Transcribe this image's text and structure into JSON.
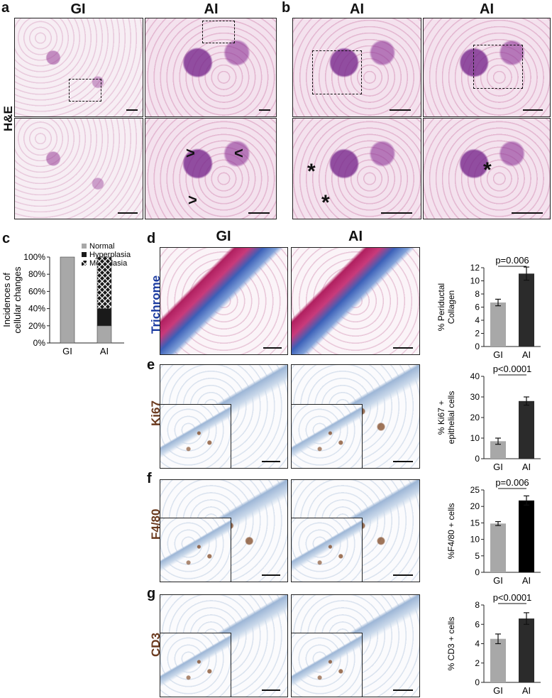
{
  "panels": {
    "a": {
      "label": "a",
      "col1": "GI",
      "col2": "AI",
      "row_label": "H&E"
    },
    "b": {
      "label": "b",
      "col1": "AI",
      "col2": "AI"
    },
    "c": {
      "label": "c"
    },
    "d": {
      "label": "d",
      "col1": "GI",
      "col2": "AI",
      "row_label": "Trichrome"
    },
    "e": {
      "label": "e",
      "row_label": "Ki67"
    },
    "f": {
      "label": "f",
      "row_label": "F4/80"
    },
    "g": {
      "label": "g",
      "row_label": "CD3"
    }
  },
  "marks": {
    "arrow_right": ">",
    "arrow_left": "<",
    "asterisk": "*"
  },
  "colors": {
    "gi_bar": "#a8a8a8",
    "ai_bar": "#2b2b2b",
    "f_ai_bar": "#000000",
    "trichrome_label": "#1a3aa0",
    "ihc_label": "#6b3a1e"
  },
  "chart_data": [
    {
      "type": "bar",
      "stacked": true,
      "categories": [
        "GI",
        "AI"
      ],
      "ylabel": "Incidences of cellular changes",
      "ylim": [
        0,
        100
      ],
      "yticks": [
        "0%",
        "20%",
        "40%",
        "60%",
        "80%",
        "100%"
      ],
      "legend": [
        "Normal",
        "Hyperplasia",
        "Metaplasia"
      ],
      "legend_placement": "top",
      "series": [
        {
          "name": "Normal",
          "values": [
            100,
            20
          ]
        },
        {
          "name": "Hyperplasia",
          "values": [
            0,
            20
          ]
        },
        {
          "name": "Metaplasia",
          "values": [
            0,
            60
          ]
        }
      ]
    },
    {
      "type": "bar",
      "categories": [
        "GI",
        "AI"
      ],
      "values": [
        6.7,
        11.1
      ],
      "errors": [
        0.5,
        1.0
      ],
      "ylabel": "% Periductal Collagen",
      "ylim": [
        0,
        12
      ],
      "yticks": [
        "0",
        "2",
        "4",
        "6",
        "8",
        "10",
        "12"
      ],
      "annotation": "p=0.006"
    },
    {
      "type": "bar",
      "categories": [
        "GI",
        "AI"
      ],
      "values": [
        8.5,
        28
      ],
      "errors": [
        1.5,
        2.0
      ],
      "ylabel": "% Ki67 + epithelial cells",
      "ylim": [
        0,
        40
      ],
      "yticks": [
        "0",
        "10",
        "20",
        "30",
        "40"
      ],
      "annotation": "p<0.0001"
    },
    {
      "type": "bar",
      "categories": [
        "GI",
        "AI"
      ],
      "values": [
        14.8,
        21.8
      ],
      "errors": [
        0.6,
        1.4
      ],
      "ylabel": "%F4/80 + cells",
      "ylim": [
        0,
        25
      ],
      "yticks": [
        "0",
        "5",
        "10",
        "15",
        "20",
        "25"
      ],
      "annotation": "p=0.006"
    },
    {
      "type": "bar",
      "categories": [
        "GI",
        "AI"
      ],
      "values": [
        4.5,
        6.6
      ],
      "errors": [
        0.5,
        0.6
      ],
      "ylabel": "% CD3 + cells",
      "ylim": [
        0,
        8
      ],
      "yticks": [
        "0",
        "2",
        "4",
        "6",
        "8"
      ],
      "annotation": "p<0.0001"
    }
  ]
}
